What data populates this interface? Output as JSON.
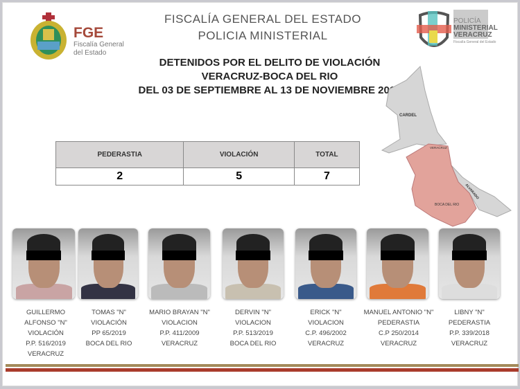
{
  "header": {
    "logo_left": {
      "title": "FGE",
      "subtitle_1": "Fiscalía General",
      "subtitle_2": "del Estado"
    },
    "title_1": "FISCALÍA GENERAL DEL ESTADO",
    "title_2": "POLICIA MINISTERIAL",
    "logo_right": {
      "line_1": "POLICÍA",
      "line_2": "MINISTERIAL",
      "line_3": "VERACRUZ",
      "line_4": "Fiscalía General del Estado"
    }
  },
  "subtitle": {
    "line_1": "DETENIDOS POR EL DELITO DE VIOLACIÓN",
    "line_2": "VERACRUZ-BOCA DEL RIO",
    "line_3": "DEL 03 DE SEPTIEMBRE AL 13 DE NOVIEMBRE 2019"
  },
  "table": {
    "headers": [
      "PEDERASTIA",
      "VIOLACIÓN",
      "TOTAL"
    ],
    "values": [
      "2",
      "5",
      "7"
    ]
  },
  "map": {
    "labels": [
      "CARDEL",
      "VERACRUZ",
      "ALVARADO",
      "BOCA DEL RIO"
    ],
    "highlight_color": "#e2a39b",
    "base_color": "#d6d6d6"
  },
  "detainees": [
    {
      "lines": [
        "GUILLERMO",
        "ALFONSO \"N\"",
        "VIOLACIÓN",
        "P.P. 516/2019",
        "VERACRUZ"
      ]
    },
    {
      "lines": [
        "TOMAS  \"N\"",
        "VIOLACIÓN",
        "PP 65/2019",
        "BOCA DEL RIO"
      ]
    },
    {
      "lines": [
        "MARIO BRAYAN \"N\"",
        "VIOLACION",
        "P.P. 411/2009",
        "VERACRUZ"
      ]
    },
    {
      "lines": [
        "DERVIN \"N\"",
        "VIOLACION",
        "P.P. 513/2019",
        "BOCA DEL RIO"
      ]
    },
    {
      "lines": [
        "ERICK \"N\"",
        "VIOLACION",
        "C.P. 496/2002",
        "VERACRUZ"
      ]
    },
    {
      "lines": [
        "MANUEL ANTONIO \"N\"",
        "PEDERASTIA",
        "C.P 250/2014",
        "VERACRUZ"
      ]
    },
    {
      "lines": [
        "LIBNY \"N\"",
        "PEDERASTIA",
        "P.P. 339/2018",
        "VERACRUZ"
      ]
    }
  ]
}
